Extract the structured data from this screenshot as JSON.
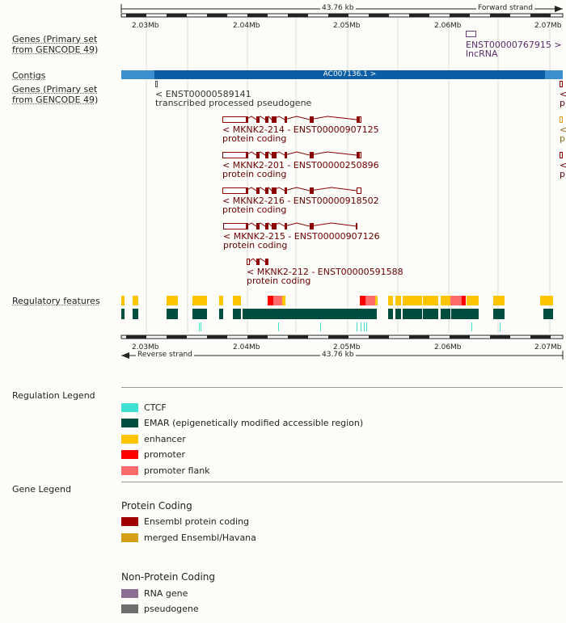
{
  "ruler": {
    "length_label": "43.76 kb",
    "forward_label": "Forward strand",
    "reverse_label": "Reverse strand",
    "ticks": [
      "2.03Mb",
      "2.04Mb",
      "2.05Mb",
      "2.06Mb",
      "2.07Mb"
    ]
  },
  "tracks": {
    "genes_primary": "Genes (Primary set from GENCODE 49)",
    "contigs": "Contigs",
    "genes_primary_reverse": "Genes (Primary set from GENCODE 49)",
    "regulatory": "Regulatory features"
  },
  "contig": {
    "label": "AC007136.1 >"
  },
  "forward_genes": [
    {
      "id": "ENST00000767915 >",
      "biotype": "lncRNA"
    }
  ],
  "reverse_genes": [
    {
      "id": "< ENST00000589141",
      "biotype": "transcribed processed pseudogene"
    },
    {
      "id": "< MKNK2-214 - ENST00000907125",
      "biotype": "protein coding"
    },
    {
      "id": "< MKNK2-201 - ENST00000250896",
      "biotype": "protein coding"
    },
    {
      "id": "< MKNK2-216 - ENST00000918502",
      "biotype": "protein coding"
    },
    {
      "id": "< MKNK2-215 - ENST00000907126",
      "biotype": "protein coding"
    },
    {
      "id": "< MKNK2-212 - ENST00000591588",
      "biotype": "protein coding"
    }
  ],
  "edge_fragments": [
    "<",
    "pr",
    "<",
    "pr",
    "<",
    "pr"
  ],
  "regulation_legend": {
    "title": "Regulation Legend",
    "items": [
      {
        "label": "CTCF",
        "color": "#40e0d0"
      },
      {
        "label": "EMAR (epigenetically modified accessible region)",
        "color": "#004d40"
      },
      {
        "label": "enhancer",
        "color": "#fdc500"
      },
      {
        "label": "promoter",
        "color": "#ff0000"
      },
      {
        "label": "promoter flank",
        "color": "#ff6b6b"
      }
    ]
  },
  "gene_legend": {
    "title": "Gene Legend",
    "protein_coding_title": "Protein Coding",
    "protein_coding": [
      {
        "label": "Ensembl protein coding",
        "color": "#a00000"
      },
      {
        "label": "merged Ensembl/Havana",
        "color": "#d4a017"
      }
    ],
    "non_protein_title": "Non-Protein Coding",
    "non_protein": [
      {
        "label": "RNA gene",
        "color": "#8b6e91"
      },
      {
        "label": "pseudogene",
        "color": "#6e6e6e"
      }
    ]
  },
  "colors": {
    "contig_light": "#3b8fce",
    "contig_dark": "#0b5ea4",
    "gene_dark": "#8b0000",
    "lnc": "#6e3b7a"
  }
}
